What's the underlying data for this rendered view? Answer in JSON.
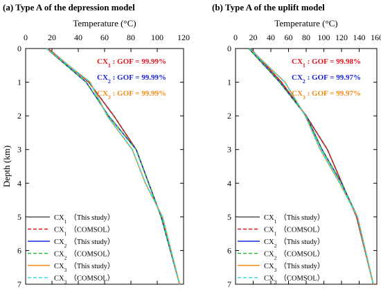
{
  "chart_data": [
    {
      "type": "line",
      "title": "(a)  Type A of the depression model",
      "xlabel": "Temperature (°C)",
      "ylabel": "Depth (km)",
      "xlim": [
        0,
        120
      ],
      "ylim": [
        0,
        7
      ],
      "x_ticks": [
        "0",
        "20",
        "40",
        "60",
        "80",
        "100",
        "120"
      ],
      "y_ticks": [
        "0",
        "1",
        "2",
        "3",
        "4",
        "5",
        "6",
        "7"
      ],
      "x_axis_position": "top",
      "y_inverted": true,
      "grid": false,
      "legend_position": "bottom-left",
      "annotations": [
        {
          "label": "CX",
          "sub": "1",
          "text": " : GOF = 99.99%",
          "color": "#e4121d"
        },
        {
          "label": "CX",
          "sub": "2",
          "text": " : GOF = 99.99%",
          "color": "#1a23d9"
        },
        {
          "label": "CX",
          "sub": "3",
          "text": " : GOF = 99.99%",
          "color": "#f58a12"
        }
      ],
      "series": [
        {
          "name": "CX1 (This study)",
          "label": "CX",
          "sub": "1",
          "method": "（This study）",
          "color": "#555555",
          "dash": "",
          "x": [
            17,
            48,
            67,
            84,
            103,
            117
          ],
          "y": [
            0,
            1,
            2,
            3,
            5,
            7
          ]
        },
        {
          "name": "CX1 (COMSOL)",
          "label": "CX",
          "sub": "1",
          "method": "（COMSOL）",
          "color": "#e4121d",
          "dash": "5,3",
          "x": [
            17,
            48,
            67,
            84,
            103,
            117
          ],
          "y": [
            0,
            1,
            2,
            3,
            5,
            7
          ]
        },
        {
          "name": "CX2 (This study)",
          "label": "CX",
          "sub": "2",
          "method": "（This study）",
          "color": "#1a23d9",
          "dash": "",
          "x": [
            16,
            46,
            63,
            84,
            103,
            117
          ],
          "y": [
            0,
            1,
            2,
            3,
            5,
            7
          ]
        },
        {
          "name": "CX2 (COMSOL)",
          "label": "CX",
          "sub": "2",
          "method": "（COMSOL）",
          "color": "#22b83a",
          "dash": "5,3",
          "x": [
            16,
            46,
            63,
            84,
            103,
            117
          ],
          "y": [
            0,
            1,
            2,
            3,
            5,
            7
          ]
        },
        {
          "name": "CX3 (This study)",
          "label": "CX",
          "sub": "3",
          "method": "（This study）",
          "color": "#f58a12",
          "dash": "",
          "x": [
            16,
            49,
            62,
            81,
            91,
            104,
            117
          ],
          "y": [
            0,
            1,
            2,
            3,
            4,
            5,
            7
          ]
        },
        {
          "name": "CX3 (COMSOL)",
          "label": "CX",
          "sub": "3",
          "method": "（COMSOL）",
          "color": "#2bd8d8",
          "dash": "5,3",
          "x": [
            16,
            49,
            62,
            81,
            91,
            104,
            117
          ],
          "y": [
            0,
            1,
            2,
            3,
            4,
            5,
            7
          ]
        }
      ]
    },
    {
      "type": "line",
      "title": "(b)  Type A of the uplift model",
      "xlabel": "Temperature (°C)",
      "ylabel": "",
      "xlim": [
        0,
        160
      ],
      "ylim": [
        0,
        7
      ],
      "x_ticks": [
        "0",
        "20",
        "40",
        "60",
        "80",
        "100",
        "120",
        "140",
        "160"
      ],
      "y_ticks": [
        "0",
        "1",
        "2",
        "3",
        "4",
        "5",
        "6",
        "7"
      ],
      "x_axis_position": "top",
      "y_inverted": true,
      "grid": false,
      "legend_position": "bottom-left",
      "annotations": [
        {
          "label": "CX",
          "sub": "1",
          "text": " : GOF = 99.98%",
          "color": "#e4121d"
        },
        {
          "label": "CX",
          "sub": "2",
          "text": " : GOF = 99.97%",
          "color": "#1a23d9"
        },
        {
          "label": "CX",
          "sub": "3",
          "text": " : GOF = 99.97%",
          "color": "#f58a12"
        }
      ],
      "series": [
        {
          "name": "CX1 (This study)",
          "label": "CX",
          "sub": "1",
          "method": "（This study）",
          "color": "#555555",
          "dash": "",
          "x": [
            17,
            52,
            80,
            104,
            137,
            156
          ],
          "y": [
            0,
            1,
            2,
            3,
            5,
            7
          ]
        },
        {
          "name": "CX1 (COMSOL)",
          "label": "CX",
          "sub": "1",
          "method": "（COMSOL）",
          "color": "#e4121d",
          "dash": "5,3",
          "x": [
            17,
            52,
            80,
            104,
            137,
            156
          ],
          "y": [
            0,
            1,
            2,
            3,
            5,
            7
          ]
        },
        {
          "name": "CX2 (This study)",
          "label": "CX",
          "sub": "2",
          "method": "（This study）",
          "color": "#1a23d9",
          "dash": "",
          "x": [
            15,
            50,
            80,
            98,
            120,
            138,
            156
          ],
          "y": [
            0,
            1,
            2,
            3,
            4,
            5,
            7
          ]
        },
        {
          "name": "CX2 (COMSOL)",
          "label": "CX",
          "sub": "2",
          "method": "（COMSOL）",
          "color": "#22b83a",
          "dash": "5,3",
          "x": [
            15,
            50,
            80,
            98,
            120,
            138,
            156
          ],
          "y": [
            0,
            1,
            2,
            3,
            4,
            5,
            7
          ]
        },
        {
          "name": "CX3 (This study)",
          "label": "CX",
          "sub": "3",
          "method": "（This study）",
          "color": "#f58a12",
          "dash": "",
          "x": [
            16,
            56,
            79,
            96,
            118,
            138,
            156
          ],
          "y": [
            0,
            1,
            2,
            3,
            4,
            5,
            7
          ]
        },
        {
          "name": "CX3 (COMSOL)",
          "label": "CX",
          "sub": "3",
          "method": "（COMSOL）",
          "color": "#2bd8d8",
          "dash": "5,3",
          "x": [
            16,
            56,
            79,
            96,
            118,
            138,
            156
          ],
          "y": [
            0,
            1,
            2,
            3,
            4,
            5,
            7
          ]
        }
      ]
    }
  ]
}
